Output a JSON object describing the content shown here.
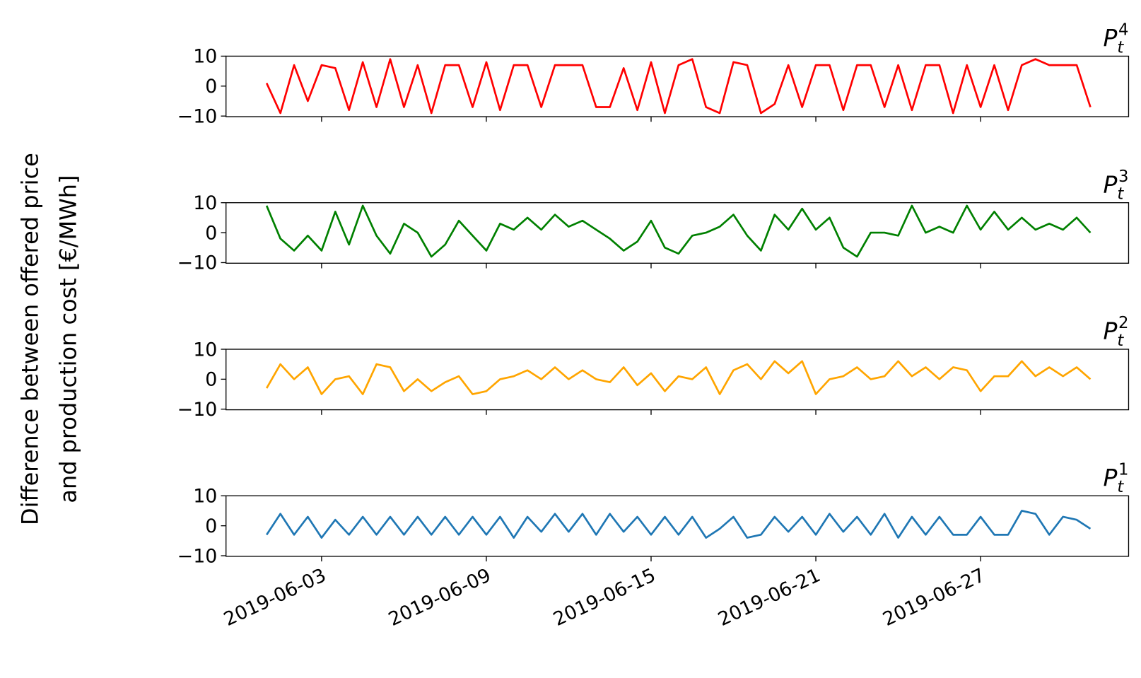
{
  "ylabel": [
    "Difference between offered price",
    "and production cost [€/MWh]"
  ],
  "chart_data": [
    {
      "type": "line",
      "title": "P",
      "title_sub": "t",
      "title_sup": "4",
      "color": "#ff0000",
      "xlim": [
        -0.48,
        32.39
      ],
      "ylim": [
        -10.2,
        10
      ],
      "yticks": [
        {
          "value": -10,
          "label": "−10"
        },
        0,
        10
      ],
      "xticks": [
        3,
        9,
        15,
        21,
        27
      ],
      "x": [
        1,
        1.5,
        2,
        2.5,
        3,
        3.5,
        4,
        4.5,
        5,
        5.5,
        6,
        6.5,
        7,
        7.5,
        8,
        8.5,
        9,
        9.5,
        10,
        10.5,
        11,
        11.5,
        12,
        12.5,
        13,
        13.5,
        14,
        14.5,
        15,
        15.5,
        16,
        16.5,
        17,
        17.5,
        18,
        18.5,
        19,
        19.5,
        20,
        20.5,
        21,
        21.5,
        22,
        22.5,
        23,
        23.5,
        24,
        24.5,
        25,
        25.5,
        26,
        26.5,
        27,
        27.5,
        28,
        28.5,
        29,
        29.5,
        30,
        30.5,
        31
      ],
      "values": [
        1,
        -9,
        7,
        -5,
        7,
        6,
        -8,
        8,
        -7,
        9,
        -7,
        7,
        -9,
        7,
        7,
        -7,
        8,
        -8,
        7,
        7,
        -7,
        7,
        7,
        7,
        -7,
        -7,
        6,
        -8,
        8,
        -9,
        7,
        9,
        -7,
        -9,
        8,
        7,
        -9,
        -6,
        7,
        -7,
        7,
        7,
        -8,
        7,
        7,
        -7,
        7,
        -8,
        7,
        7,
        -9,
        7,
        -7,
        7,
        -8,
        7,
        9,
        7,
        7,
        7,
        -7
      ]
    },
    {
      "type": "line",
      "title": "P",
      "title_sub": "t",
      "title_sup": "3",
      "color": "#008000",
      "xlim": [
        -0.48,
        32.39
      ],
      "ylim": [
        -10.2,
        10
      ],
      "yticks": [
        {
          "value": -10,
          "label": "−10"
        },
        0,
        10
      ],
      "xticks": [
        3,
        9,
        15,
        21,
        27
      ],
      "x": [
        1,
        1.5,
        2,
        2.5,
        3,
        3.5,
        4,
        4.5,
        5,
        5.5,
        6,
        6.5,
        7,
        7.5,
        8,
        8.5,
        9,
        9.5,
        10,
        10.5,
        11,
        11.5,
        12,
        12.5,
        13,
        13.5,
        14,
        14.5,
        15,
        15.5,
        16,
        16.5,
        17,
        17.5,
        18,
        18.5,
        19,
        19.5,
        20,
        20.5,
        21,
        21.5,
        22,
        22.5,
        23,
        23.5,
        24,
        24.5,
        25,
        25.5,
        26,
        26.5,
        27,
        27.5,
        28,
        28.5,
        29,
        29.5,
        30,
        30.5,
        31
      ],
      "values": [
        9,
        -2,
        -6,
        -1,
        -6,
        7,
        -4,
        9,
        -1,
        -7,
        3,
        0,
        -8,
        -4,
        4,
        -1,
        -6,
        3,
        1,
        5,
        1,
        6,
        2,
        4,
        1,
        -2,
        -6,
        -3,
        4,
        -5,
        -7,
        -1,
        0,
        2,
        6,
        -1,
        -6,
        6,
        1,
        8,
        1,
        5,
        -5,
        -8,
        0,
        0,
        -1,
        9,
        0,
        2,
        0,
        9,
        1,
        7,
        1,
        5,
        1,
        3,
        1,
        5,
        0
      ]
    },
    {
      "type": "line",
      "title": "P",
      "title_sub": "t",
      "title_sup": "2",
      "color": "#ffa500",
      "xlim": [
        -0.48,
        32.39
      ],
      "ylim": [
        -10.2,
        10
      ],
      "yticks": [
        {
          "value": -10,
          "label": "−10"
        },
        0,
        10
      ],
      "xticks": [
        3,
        9,
        15,
        21,
        27
      ],
      "x": [
        1,
        1.5,
        2,
        2.5,
        3,
        3.5,
        4,
        4.5,
        5,
        5.5,
        6,
        6.5,
        7,
        7.5,
        8,
        8.5,
        9,
        9.5,
        10,
        10.5,
        11,
        11.5,
        12,
        12.5,
        13,
        13.5,
        14,
        14.5,
        15,
        15.5,
        16,
        16.5,
        17,
        17.5,
        18,
        18.5,
        19,
        19.5,
        20,
        20.5,
        21,
        21.5,
        22,
        22.5,
        23,
        23.5,
        24,
        24.5,
        25,
        25.5,
        26,
        26.5,
        27,
        27.5,
        28,
        28.5,
        29,
        29.5,
        30,
        30.5,
        31
      ],
      "values": [
        -3,
        5,
        0,
        4,
        -5,
        0,
        1,
        -5,
        5,
        4,
        -4,
        0,
        -4,
        -1,
        1,
        -5,
        -4,
        0,
        1,
        3,
        0,
        4,
        0,
        3,
        0,
        -1,
        4,
        -2,
        2,
        -4,
        1,
        0,
        4,
        -5,
        3,
        5,
        0,
        6,
        2,
        6,
        -5,
        0,
        1,
        4,
        0,
        1,
        6,
        1,
        4,
        0,
        4,
        3,
        -4,
        1,
        1,
        6,
        1,
        4,
        1,
        4,
        0
      ]
    },
    {
      "type": "line",
      "title": "P",
      "title_sub": "t",
      "title_sup": "1",
      "color": "#1f77b4",
      "xlim": [
        -0.48,
        32.39
      ],
      "ylim": [
        -10.2,
        10
      ],
      "yticks": [
        {
          "value": -10,
          "label": "−10"
        },
        0,
        10
      ],
      "xticks": [
        {
          "value": 3,
          "label": "2019-06-03"
        },
        {
          "value": 9,
          "label": "2019-06-09"
        },
        {
          "value": 15,
          "label": "2019-06-15"
        },
        {
          "value": 21,
          "label": "2019-06-21"
        },
        {
          "value": 27,
          "label": "2019-06-27"
        }
      ],
      "x": [
        1,
        1.5,
        2,
        2.5,
        3,
        3.5,
        4,
        4.5,
        5,
        5.5,
        6,
        6.5,
        7,
        7.5,
        8,
        8.5,
        9,
        9.5,
        10,
        10.5,
        11,
        11.5,
        12,
        12.5,
        13,
        13.5,
        14,
        14.5,
        15,
        15.5,
        16,
        16.5,
        17,
        17.5,
        18,
        18.5,
        19,
        19.5,
        20,
        20.5,
        21,
        21.5,
        22,
        22.5,
        23,
        23.5,
        24,
        24.5,
        25,
        25.5,
        26,
        26.5,
        27,
        27.5,
        28,
        28.5,
        29,
        29.5,
        30,
        30.5,
        31
      ],
      "values": [
        -3,
        4,
        -3,
        3,
        -4,
        2,
        -3,
        3,
        -3,
        3,
        -3,
        3,
        -3,
        3,
        -3,
        3,
        -3,
        3,
        -4,
        3,
        -2,
        4,
        -2,
        4,
        -3,
        4,
        -2,
        3,
        -3,
        3,
        -3,
        3,
        -4,
        -1,
        3,
        -4,
        -3,
        3,
        -2,
        3,
        -3,
        4,
        -2,
        3,
        -3,
        4,
        -4,
        3,
        -3,
        3,
        -3,
        -3,
        3,
        -3,
        -3,
        5,
        4,
        -3,
        3,
        2,
        -1
      ]
    }
  ]
}
